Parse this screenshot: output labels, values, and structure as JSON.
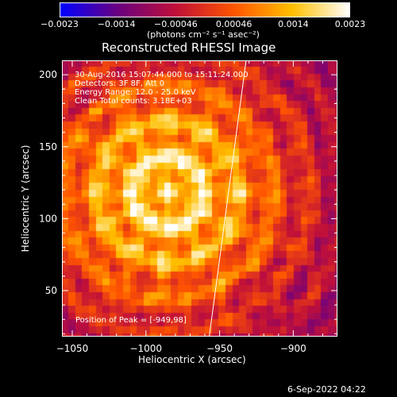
{
  "chart_data": {
    "type": "heatmap",
    "title": "Reconstructed RHESSI Image",
    "xlabel": "Heliocentric X (arcsec)",
    "ylabel": "Heliocentric Y (arcsec)",
    "xlim": [
      -1057,
      -870
    ],
    "ylim": [
      18,
      210
    ],
    "x_ticks": [
      -1050,
      -1000,
      -950,
      -900
    ],
    "x_tick_labels": [
      "−1050",
      "−1000",
      "−950",
      "−900"
    ],
    "y_ticks": [
      50,
      100,
      150,
      200
    ],
    "y_tick_labels": [
      "50",
      "100",
      "150",
      "200"
    ],
    "peak": [
      -949,
      98
    ],
    "colorbar": {
      "range": [
        -0.0023,
        0.0023
      ],
      "ticks": [
        -0.0023,
        -0.0014,
        -0.00046,
        0.00046,
        0.0014,
        0.0023
      ],
      "tick_labels": [
        "−0.0023",
        "−0.0014",
        "−0.00046",
        "0.00046",
        "0.0014",
        "0.0023"
      ],
      "units": "(photons cm⁻² s⁻¹ asec⁻²)",
      "colors": [
        "#0000ff",
        "#6a0080",
        "#c0103a",
        "#ff5500",
        "#ffc000",
        "#ffffff"
      ]
    },
    "annotations": [
      "30-Aug-2016 15:07:44.000 to 15:11:24.000",
      "Detectors: 3F 8F, Att 0",
      "Energy Range: 12.0 - 25.0 keV",
      "Clean      Total counts: 3.18E+03"
    ],
    "peak_label": "Position of Peak = [-949,98]",
    "limb_line": [
      [
        -957,
        18
      ],
      [
        -932,
        210
      ]
    ]
  },
  "footer_date": "6-Sep-2022 04:22"
}
